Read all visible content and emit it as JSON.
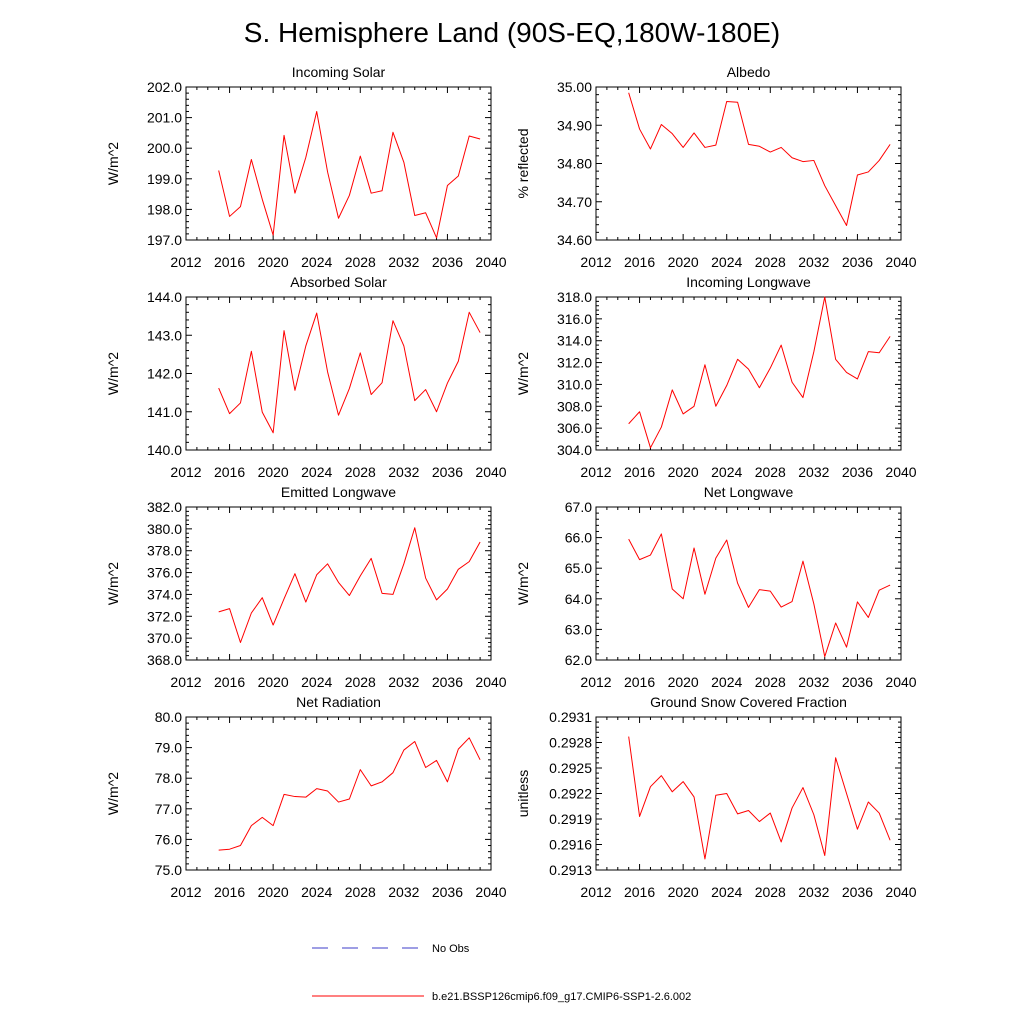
{
  "figure": {
    "title": "S. Hemisphere Land (90S-EQ,180W-180E)",
    "colors": {
      "model": "#ff0000",
      "obs": "#3c3cc8",
      "axis": "#000000"
    }
  },
  "legend": [
    {
      "label": "No Obs",
      "style": "dashed",
      "color": "#3c3cc8"
    },
    {
      "label": "b.e21.BSSP126cmip6.f09_g17.CMIP6-SSP1-2.6.002",
      "style": "solid",
      "color": "#ff0000"
    }
  ],
  "chart_data": [
    {
      "type": "line",
      "title": "Incoming Solar",
      "ylabel": "W/m^2",
      "xlim": [
        2012,
        2040
      ],
      "xticks": [
        "2012",
        "2016",
        "2020",
        "2024",
        "2028",
        "2032",
        "2036",
        "2040"
      ],
      "ylim": [
        197.0,
        202.0
      ],
      "yticks": [
        "197.0",
        "198.0",
        "199.0",
        "200.0",
        "201.0",
        "202.0"
      ],
      "series": [
        {
          "name": "b.e21.BSSP126cmip6.f09_g17.CMIP6-SSP1-2.6.002",
          "x": [
            2015,
            2016,
            2017,
            2018,
            2019,
            2020,
            2021,
            2022,
            2023,
            2024,
            2025,
            2026,
            2027,
            2028,
            2029,
            2030,
            2031,
            2032,
            2033,
            2034,
            2035,
            2036,
            2037,
            2038,
            2039
          ],
          "values": [
            199.27,
            197.77,
            198.09,
            199.63,
            198.33,
            197.16,
            200.42,
            198.53,
            199.7,
            201.2,
            199.22,
            197.71,
            198.46,
            199.74,
            198.53,
            198.61,
            200.52,
            199.54,
            197.8,
            197.89,
            197.07,
            198.78,
            199.09,
            200.4,
            200.3
          ]
        }
      ]
    },
    {
      "type": "line",
      "title": "Albedo",
      "ylabel": "% reflected",
      "xlim": [
        2012,
        2040
      ],
      "xticks": [
        "2012",
        "2016",
        "2020",
        "2024",
        "2028",
        "2032",
        "2036",
        "2040"
      ],
      "ylim": [
        34.6,
        35.0
      ],
      "yticks": [
        "34.60",
        "34.70",
        "34.80",
        "34.90",
        "35.00"
      ],
      "series": [
        {
          "name": "b.e21.BSSP126cmip6.f09_g17.CMIP6-SSP1-2.6.002",
          "x": [
            2015,
            2016,
            2017,
            2018,
            2019,
            2020,
            2021,
            2022,
            2023,
            2024,
            2025,
            2026,
            2027,
            2028,
            2029,
            2030,
            2031,
            2032,
            2033,
            2034,
            2035,
            2036,
            2037,
            2038,
            2039
          ],
          "values": [
            34.985,
            34.89,
            34.838,
            34.902,
            34.878,
            34.842,
            34.88,
            34.842,
            34.848,
            34.962,
            34.96,
            34.85,
            34.845,
            34.83,
            34.842,
            34.815,
            34.805,
            34.808,
            34.742,
            34.69,
            34.638,
            34.77,
            34.778,
            34.808,
            34.85
          ]
        }
      ]
    },
    {
      "type": "line",
      "title": "Absorbed Solar",
      "ylabel": "W/m^2",
      "xlim": [
        2012,
        2040
      ],
      "xticks": [
        "2012",
        "2016",
        "2020",
        "2024",
        "2028",
        "2032",
        "2036",
        "2040"
      ],
      "ylim": [
        140.0,
        144.0
      ],
      "yticks": [
        "140.0",
        "141.0",
        "142.0",
        "143.0",
        "144.0"
      ],
      "series": [
        {
          "name": "b.e21.BSSP126cmip6.f09_g17.CMIP6-SSP1-2.6.002",
          "x": [
            2015,
            2016,
            2017,
            2018,
            2019,
            2020,
            2021,
            2022,
            2023,
            2024,
            2025,
            2026,
            2027,
            2028,
            2029,
            2030,
            2031,
            2032,
            2033,
            2034,
            2035,
            2036,
            2037,
            2038,
            2039
          ],
          "values": [
            141.62,
            140.95,
            141.23,
            142.58,
            140.99,
            140.45,
            143.12,
            141.56,
            142.72,
            143.58,
            142.04,
            140.91,
            141.61,
            142.54,
            141.45,
            141.76,
            143.38,
            142.72,
            141.29,
            141.58,
            141.0,
            141.75,
            142.32,
            143.6,
            143.07
          ]
        }
      ]
    },
    {
      "type": "line",
      "title": "Incoming Longwave",
      "ylabel": "W/m^2",
      "xlim": [
        2012,
        2040
      ],
      "xticks": [
        "2012",
        "2016",
        "2020",
        "2024",
        "2028",
        "2032",
        "2036",
        "2040"
      ],
      "ylim": [
        304.0,
        318.0
      ],
      "yticks": [
        "304.0",
        "306.0",
        "308.0",
        "310.0",
        "312.0",
        "314.0",
        "316.0",
        "318.0"
      ],
      "series": [
        {
          "name": "b.e21.BSSP126cmip6.f09_g17.CMIP6-SSP1-2.6.002",
          "x": [
            2015,
            2016,
            2017,
            2018,
            2019,
            2020,
            2021,
            2022,
            2023,
            2024,
            2025,
            2026,
            2027,
            2028,
            2029,
            2030,
            2031,
            2032,
            2033,
            2034,
            2035,
            2036,
            2037,
            2038,
            2039
          ],
          "values": [
            306.4,
            307.5,
            304.2,
            306.1,
            309.5,
            307.3,
            308.0,
            311.8,
            308.0,
            309.9,
            312.3,
            311.4,
            309.7,
            311.5,
            313.6,
            310.2,
            308.8,
            313.0,
            318.0,
            312.3,
            311.1,
            310.5,
            313.0,
            312.9,
            314.4
          ]
        }
      ]
    },
    {
      "type": "line",
      "title": "Emitted Longwave",
      "ylabel": "W/m^2",
      "xlim": [
        2012,
        2040
      ],
      "xticks": [
        "2012",
        "2016",
        "2020",
        "2024",
        "2028",
        "2032",
        "2036",
        "2040"
      ],
      "ylim": [
        368.0,
        382.0
      ],
      "yticks": [
        "368.0",
        "370.0",
        "372.0",
        "374.0",
        "376.0",
        "378.0",
        "380.0",
        "382.0"
      ],
      "series": [
        {
          "name": "b.e21.BSSP126cmip6.f09_g17.CMIP6-SSP1-2.6.002",
          "x": [
            2015,
            2016,
            2017,
            2018,
            2019,
            2020,
            2021,
            2022,
            2023,
            2024,
            2025,
            2026,
            2027,
            2028,
            2029,
            2030,
            2031,
            2032,
            2033,
            2034,
            2035,
            2036,
            2037,
            2038,
            2039
          ],
          "values": [
            372.4,
            372.7,
            369.6,
            372.3,
            373.7,
            371.2,
            373.6,
            375.9,
            373.3,
            375.8,
            376.8,
            375.1,
            373.9,
            375.7,
            377.3,
            374.1,
            374.0,
            376.8,
            380.1,
            375.5,
            373.5,
            374.5,
            376.3,
            377.0,
            378.8
          ]
        }
      ]
    },
    {
      "type": "line",
      "title": "Net Longwave",
      "ylabel": "W/m^2",
      "xlim": [
        2012,
        2040
      ],
      "xticks": [
        "2012",
        "2016",
        "2020",
        "2024",
        "2028",
        "2032",
        "2036",
        "2040"
      ],
      "ylim": [
        62.0,
        67.0
      ],
      "yticks": [
        "62.0",
        "63.0",
        "64.0",
        "65.0",
        "66.0",
        "67.0"
      ],
      "series": [
        {
          "name": "b.e21.BSSP126cmip6.f09_g17.CMIP6-SSP1-2.6.002",
          "x": [
            2015,
            2016,
            2017,
            2018,
            2019,
            2020,
            2021,
            2022,
            2023,
            2024,
            2025,
            2026,
            2027,
            2028,
            2029,
            2030,
            2031,
            2032,
            2033,
            2034,
            2035,
            2036,
            2037,
            2038,
            2039
          ],
          "values": [
            65.95,
            65.28,
            65.43,
            66.12,
            64.32,
            64.0,
            65.66,
            64.15,
            65.33,
            65.92,
            64.51,
            63.72,
            64.3,
            64.25,
            63.73,
            63.91,
            65.23,
            63.83,
            62.11,
            63.21,
            62.42,
            63.9,
            63.39,
            64.28,
            64.45
          ]
        }
      ]
    },
    {
      "type": "line",
      "title": "Net Radiation",
      "ylabel": "W/m^2",
      "xlim": [
        2012,
        2040
      ],
      "xticks": [
        "2012",
        "2016",
        "2020",
        "2024",
        "2028",
        "2032",
        "2036",
        "2040"
      ],
      "ylim": [
        75.0,
        80.0
      ],
      "yticks": [
        "75.0",
        "76.0",
        "77.0",
        "78.0",
        "79.0",
        "80.0"
      ],
      "series": [
        {
          "name": "b.e21.BSSP126cmip6.f09_g17.CMIP6-SSP1-2.6.002",
          "x": [
            2015,
            2016,
            2017,
            2018,
            2019,
            2020,
            2021,
            2022,
            2023,
            2024,
            2025,
            2026,
            2027,
            2028,
            2029,
            2030,
            2031,
            2032,
            2033,
            2034,
            2035,
            2036,
            2037,
            2038,
            2039
          ],
          "values": [
            75.65,
            75.68,
            75.8,
            76.45,
            76.72,
            76.45,
            77.47,
            77.4,
            77.38,
            77.66,
            77.58,
            77.22,
            77.32,
            78.28,
            77.75,
            77.88,
            78.18,
            78.92,
            79.2,
            78.35,
            78.58,
            77.88,
            78.95,
            79.32,
            78.6
          ]
        }
      ]
    },
    {
      "type": "line",
      "title": "Ground Snow Covered Fraction",
      "ylabel": "unitless",
      "xlim": [
        2012,
        2040
      ],
      "xticks": [
        "2012",
        "2016",
        "2020",
        "2024",
        "2028",
        "2032",
        "2036",
        "2040"
      ],
      "ylim": [
        0.2913,
        0.2931
      ],
      "yticks": [
        "0.2913",
        "0.2916",
        "0.2919",
        "0.2922",
        "0.2925",
        "0.2928",
        "0.2931"
      ],
      "series": [
        {
          "name": "b.e21.BSSP126cmip6.f09_g17.CMIP6-SSP1-2.6.002",
          "x": [
            2015,
            2016,
            2017,
            2018,
            2019,
            2020,
            2021,
            2022,
            2023,
            2024,
            2025,
            2026,
            2027,
            2028,
            2029,
            2030,
            2031,
            2032,
            2033,
            2034,
            2035,
            2036,
            2037,
            2038,
            2039
          ],
          "values": [
            0.29287,
            0.29193,
            0.29228,
            0.29241,
            0.29222,
            0.29234,
            0.29216,
            0.29143,
            0.29218,
            0.2922,
            0.29196,
            0.292,
            0.29187,
            0.29197,
            0.29163,
            0.29203,
            0.29227,
            0.29195,
            0.29147,
            0.29262,
            0.2922,
            0.29178,
            0.2921,
            0.29197,
            0.29165
          ]
        }
      ]
    }
  ]
}
